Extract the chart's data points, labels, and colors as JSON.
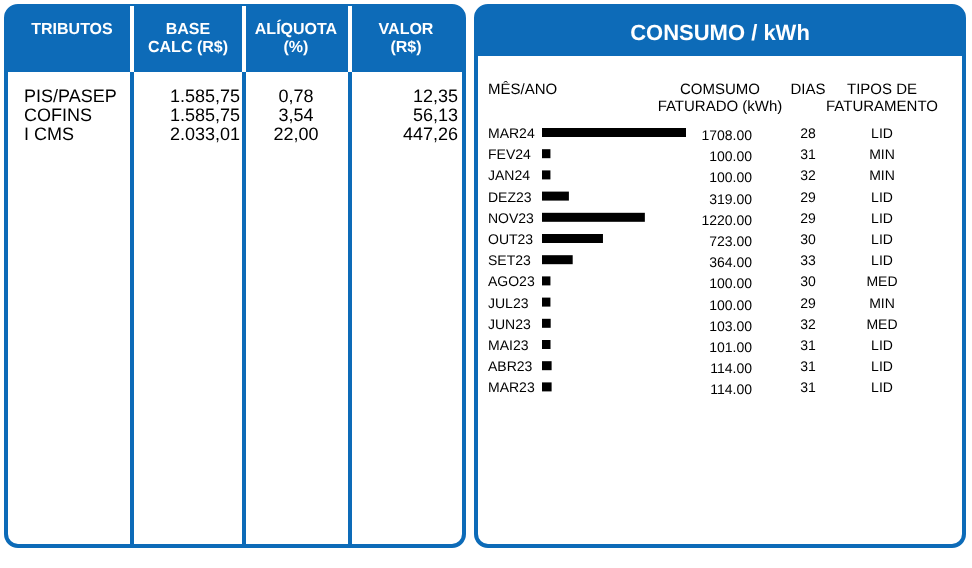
{
  "chart_data": [
    {
      "type": "other",
      "annotations": [
        "TRIBUTOS",
        "BASE\nCALC (R$)",
        "ALÍQUOTA\n(%)",
        "VALOR\n(R$)",
        "PIS/PASEP",
        "1.585,75",
        "0,78",
        "12,35",
        "COFINS",
        "1.585,75",
        "3,54",
        "56,13",
        "I CMS",
        "2.033,01",
        "22,00",
        "447,26"
      ]
    },
    {
      "type": "bar",
      "orientation": "horizontal",
      "title": "CONSUMO / kWh",
      "color": "#000000",
      "categories": [
        "MAR24",
        "FEV24",
        "JAN24",
        "DEZ23",
        "NOV23",
        "OUT23",
        "SET23",
        "AGO23",
        "JUL23",
        "JUN23",
        "MAI23",
        "ABR23",
        "MAR23"
      ],
      "values": [
        1708,
        100,
        100,
        319,
        1220,
        723,
        364,
        100,
        100,
        103,
        101,
        114,
        114
      ],
      "value_labels": [
        "1708.00",
        "100.00",
        "100.00",
        "319.00",
        "1220.00",
        "723.00",
        "364.00",
        "100.00",
        "100.00",
        "103.00",
        "101.00",
        "114.00",
        "114.00"
      ],
      "annotations": [
        "MÊS/ANO",
        "COMSUMO\nFATURADO (kWh)",
        "DIAS",
        "TIPOS DE\nFATURAMENTO",
        "28",
        "LID",
        "31",
        "MIN",
        "32",
        "MIN",
        "29",
        "LID",
        "29",
        "LID",
        "30",
        "LID",
        "33",
        "LID",
        "30",
        "MED",
        "29",
        "MIN",
        "32",
        "MED",
        "31",
        "LID",
        "31",
        "LID",
        "31",
        "LID"
      ]
    }
  ]
}
